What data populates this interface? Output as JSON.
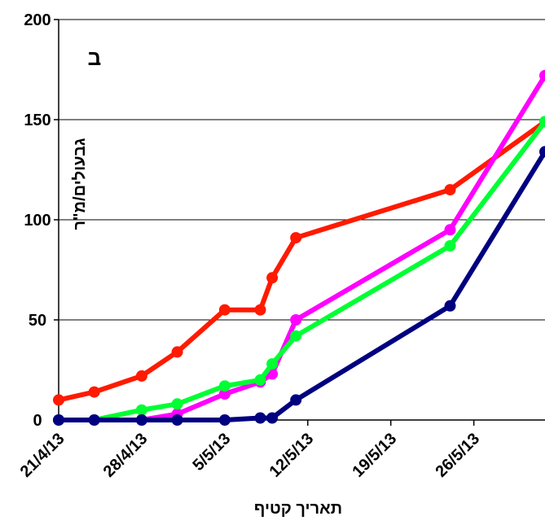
{
  "chart_data": {
    "type": "line",
    "title": "",
    "panel_label": "ב",
    "xlabel": "תאריך קטיף",
    "ylabel": "גבעולים/מ\"ר",
    "x_type": "date",
    "xlim": [
      "2013-04-21",
      "2013-06-01"
    ],
    "ylim": [
      0,
      200
    ],
    "x_ticks": [
      "2013-04-21",
      "2013-04-28",
      "2013-05-05",
      "2013-05-12",
      "2013-05-19",
      "2013-05-26"
    ],
    "x_tick_labels": [
      "21/4/13",
      "28/4/13",
      "5/5/13",
      "12/5/13",
      "19/5/13",
      "26/5/13"
    ],
    "y_ticks": [
      0,
      50,
      100,
      150,
      200
    ],
    "y_tick_labels": [
      "0",
      "50",
      "100",
      "150",
      "200"
    ],
    "grid": "horizontal",
    "legend": "none",
    "series": [
      {
        "color": "#ff1a00",
        "points": [
          [
            "2013-04-21",
            10
          ],
          [
            "2013-04-24",
            14
          ],
          [
            "2013-04-28",
            22
          ],
          [
            "2013-05-01",
            34
          ],
          [
            "2013-05-05",
            55
          ],
          [
            "2013-05-08",
            55
          ],
          [
            "2013-05-09",
            71
          ],
          [
            "2013-05-11",
            91
          ],
          [
            "2013-05-24",
            115
          ],
          [
            "2013-06-01",
            149
          ]
        ]
      },
      {
        "color": "#ff00ff",
        "points": [
          [
            "2013-04-21",
            0
          ],
          [
            "2013-04-24",
            0
          ],
          [
            "2013-04-28",
            0
          ],
          [
            "2013-05-01",
            3
          ],
          [
            "2013-05-05",
            13
          ],
          [
            "2013-05-08",
            19
          ],
          [
            "2013-05-09",
            23
          ],
          [
            "2013-05-11",
            50
          ],
          [
            "2013-05-24",
            95
          ],
          [
            "2013-06-01",
            172
          ]
        ]
      },
      {
        "color": "#00ff33",
        "points": [
          [
            "2013-04-21",
            0
          ],
          [
            "2013-04-24",
            0
          ],
          [
            "2013-04-28",
            5
          ],
          [
            "2013-05-01",
            8
          ],
          [
            "2013-05-05",
            17
          ],
          [
            "2013-05-08",
            20
          ],
          [
            "2013-05-09",
            28
          ],
          [
            "2013-05-11",
            42
          ],
          [
            "2013-05-24",
            87
          ],
          [
            "2013-06-01",
            149
          ]
        ]
      },
      {
        "color": "#000080",
        "points": [
          [
            "2013-04-21",
            0
          ],
          [
            "2013-04-24",
            0
          ],
          [
            "2013-04-28",
            0
          ],
          [
            "2013-05-01",
            0
          ],
          [
            "2013-05-05",
            0
          ],
          [
            "2013-05-08",
            1
          ],
          [
            "2013-05-09",
            1
          ],
          [
            "2013-05-11",
            10
          ],
          [
            "2013-05-24",
            57
          ],
          [
            "2013-06-01",
            134
          ]
        ]
      }
    ]
  }
}
